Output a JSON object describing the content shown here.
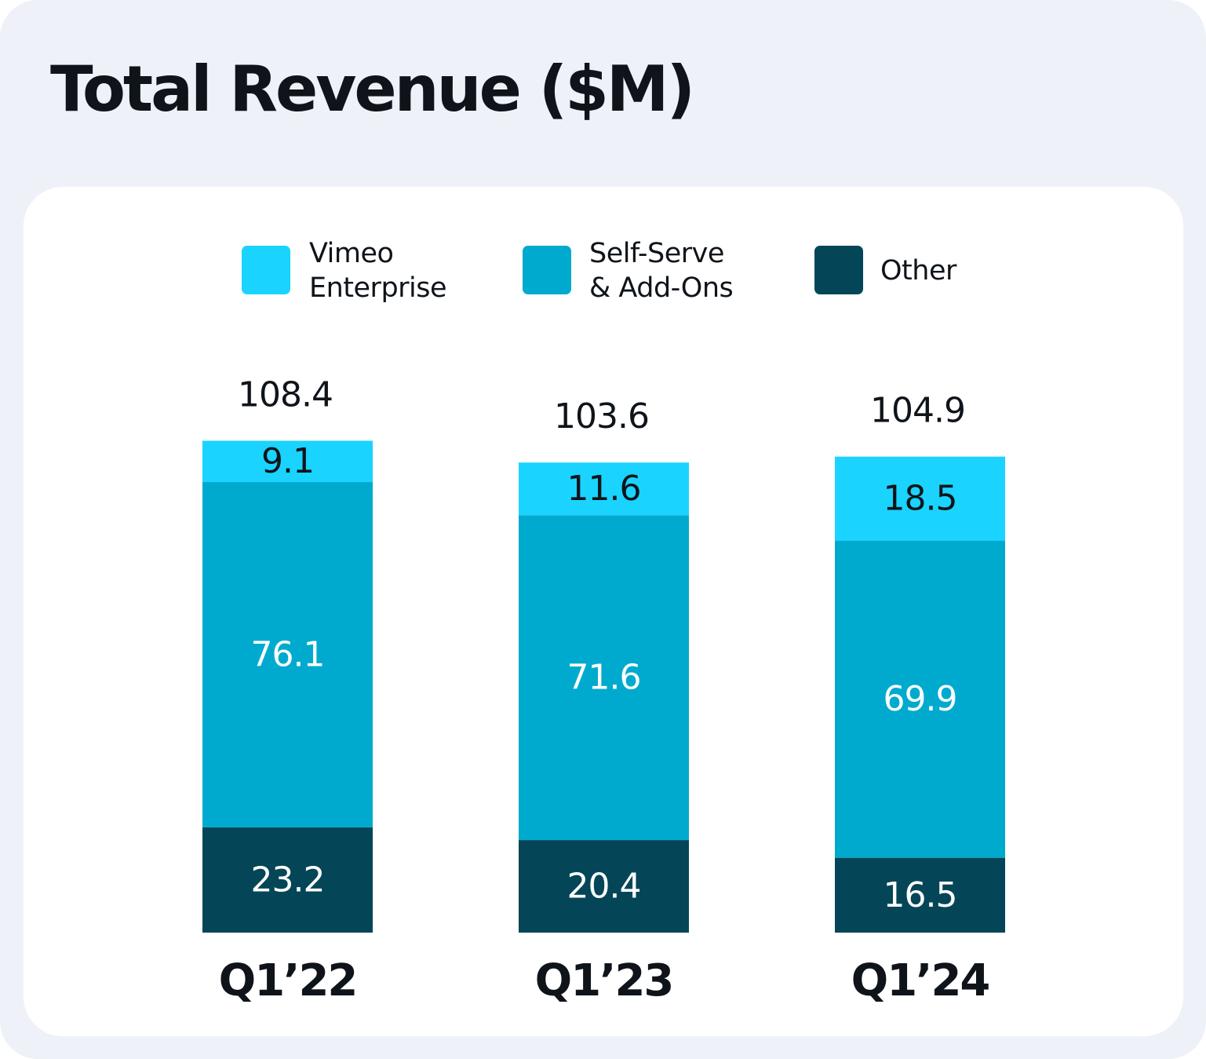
{
  "colors": {
    "background": "#eef2f8",
    "panel": "#ffffff",
    "vimeo_enterprise": "#1ad3ff",
    "self_serve": "#00aacf",
    "other": "#044657",
    "label_dark": "#0f141a",
    "label_light": "#ffffff"
  },
  "chart_data": {
    "type": "bar",
    "stacked": true,
    "title": "Total Revenue ($M)",
    "categories": [
      "Q1’22",
      "Q1’23",
      "Q1’24"
    ],
    "series": [
      {
        "name": "Other",
        "values": [
          23.2,
          20.4,
          16.5
        ],
        "color": "#044657",
        "label_color": "#ffffff"
      },
      {
        "name": "Self-Serve\n& Add-Ons",
        "values": [
          76.1,
          71.6,
          69.9
        ],
        "color": "#00aacf",
        "label_color": "#ffffff"
      },
      {
        "name": "Vimeo\nEnterprise",
        "values": [
          9.1,
          11.6,
          18.5
        ],
        "color": "#1ad3ff",
        "label_color": "#0f141a"
      }
    ],
    "totals": [
      "108.4",
      "103.6",
      "104.9"
    ],
    "value_labels": [
      [
        "23.2",
        "20.4",
        "16.5"
      ],
      [
        "76.1",
        "71.6",
        "69.9"
      ],
      [
        "9.1",
        "11.6",
        "18.5"
      ]
    ],
    "legend": [
      {
        "label": "Vimeo\nEnterprise",
        "color": "#1ad3ff"
      },
      {
        "label": "Self-Serve\n& Add-Ons",
        "color": "#00aacf"
      },
      {
        "label": "Other",
        "color": "#044657"
      }
    ],
    "legend_position": "top",
    "grid": false,
    "xlabel": "",
    "ylabel": ""
  }
}
